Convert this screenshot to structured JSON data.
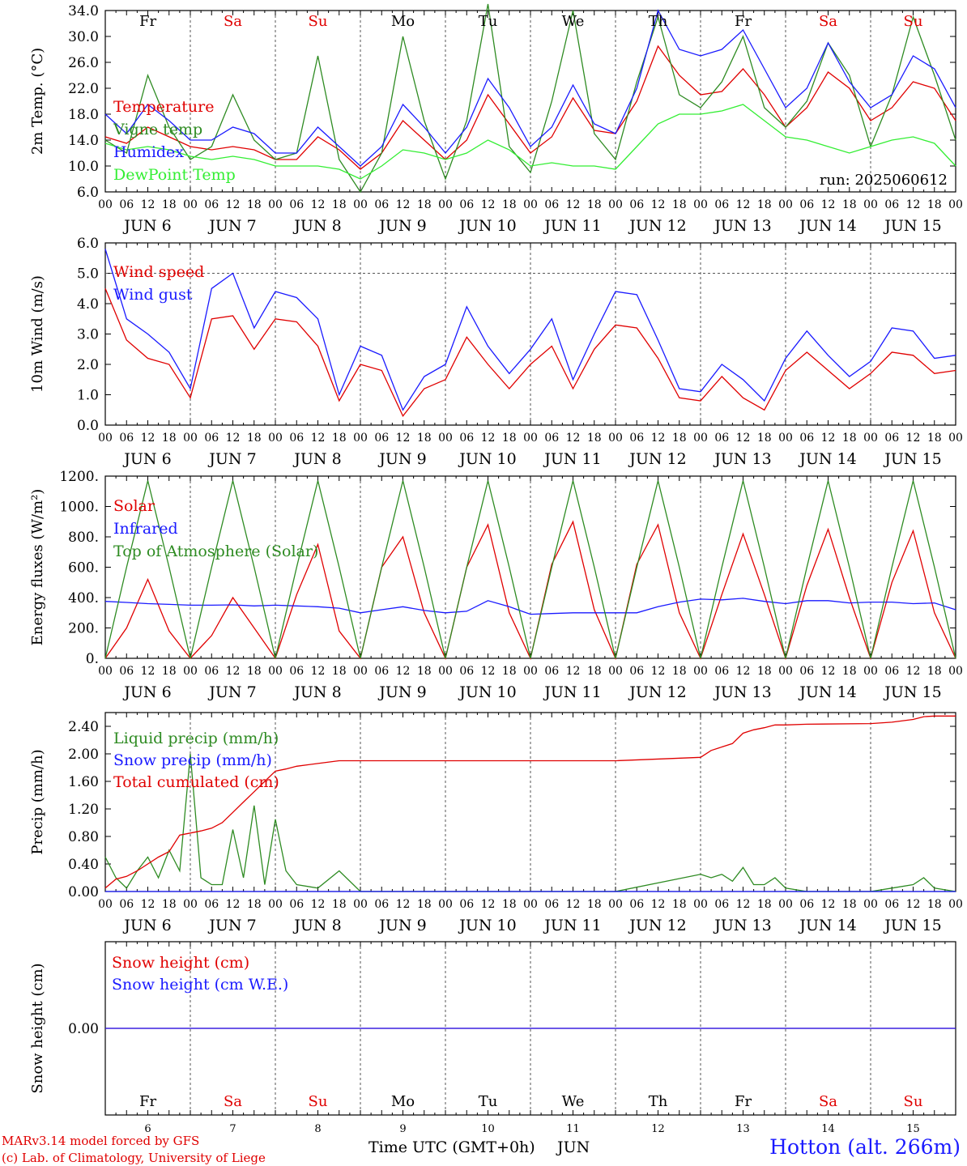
{
  "run_label": "run: 2025060612",
  "time_axis": {
    "hour_labels": [
      "00",
      "06",
      "12",
      "18"
    ],
    "end_hour_label": "00",
    "day_labels": [
      "JUN  6",
      "JUN  7",
      "JUN  8",
      "JUN  9",
      "JUN 10",
      "JUN 11",
      "JUN 12",
      "JUN 13",
      "JUN 14",
      "JUN 15"
    ],
    "weekdays": [
      "Fr",
      "Sa",
      "Su",
      "Mo",
      "Tu",
      "We",
      "Th",
      "Fr",
      "Sa",
      "Su"
    ],
    "weekday_colors": [
      "#000000",
      "#e00000",
      "#e00000",
      "#000000",
      "#000000",
      "#000000",
      "#000000",
      "#000000",
      "#e00000",
      "#e00000"
    ],
    "bottom_day_numbers": [
      "6",
      "7",
      "8",
      "9",
      "10",
      "11",
      "12",
      "13",
      "14",
      "15"
    ],
    "bottom_label": "Time UTC (GMT+0h)",
    "month_label": "JUN"
  },
  "footer": {
    "model_line": "MARv3.14 model forced by GFS",
    "credit_line": "(c) Lab. of Climatology, University of Liege",
    "station": "Hotton (alt. 266m)"
  },
  "colors": {
    "red": "#e00000",
    "green": "#2e8b22",
    "blue": "#1a1aff",
    "light_green": "#33ee33",
    "grid": "#555555"
  },
  "chart_data": [
    {
      "type": "line",
      "ylabel": "2m Temp. (°C)",
      "ylim": [
        6,
        34
      ],
      "ytick_values": [
        6,
        10,
        14,
        18,
        22,
        26,
        30,
        34
      ],
      "ytick_labels": [
        "6.0",
        "10.0",
        "14.0",
        "18.0",
        "22.0",
        "26.0",
        "30.0",
        "34.0"
      ],
      "ref_line": null,
      "x_days": [
        0,
        0.25,
        0.5,
        0.75,
        1,
        1.25,
        1.5,
        1.75,
        2,
        2.25,
        2.5,
        2.75,
        3,
        3.25,
        3.5,
        3.75,
        4,
        4.25,
        4.5,
        4.75,
        5,
        5.25,
        5.5,
        5.75,
        6,
        6.25,
        6.5,
        6.75,
        7,
        7.25,
        7.5,
        7.75,
        8,
        8.25,
        8.5,
        8.75,
        9,
        9.25,
        9.5,
        9.75,
        10
      ],
      "series": [
        {
          "name": "Temperature",
          "color": "red",
          "values": [
            14.5,
            13.5,
            16,
            14.5,
            13,
            12.5,
            13,
            12.5,
            11,
            11,
            14.5,
            12.5,
            9.5,
            12,
            17,
            14,
            11,
            14,
            21,
            16.5,
            12,
            14.5,
            20.5,
            15.5,
            15,
            20,
            28.5,
            24,
            21,
            21.5,
            25,
            21,
            16,
            19,
            24.5,
            22,
            17,
            19,
            23,
            22,
            17
          ]
        },
        {
          "name": "Vigne temp",
          "color": "green",
          "values": [
            14,
            12,
            24,
            16,
            11,
            13,
            21,
            14,
            11,
            12,
            27,
            11,
            6,
            12,
            30,
            17,
            8,
            17,
            35,
            13,
            9,
            20,
            34,
            15,
            11,
            23,
            33,
            21,
            19,
            23,
            30,
            19,
            16,
            20,
            29,
            24,
            13,
            21,
            33,
            24,
            14
          ]
        },
        {
          "name": "Humidex",
          "color": "blue",
          "values": [
            18,
            15,
            19.5,
            17,
            14,
            14,
            16,
            15,
            12,
            12,
            16,
            13,
            10,
            13,
            19.5,
            16,
            12,
            16,
            23.5,
            19,
            13,
            16,
            22.5,
            16.5,
            15,
            22,
            34,
            28,
            27,
            28,
            31,
            25,
            19,
            22,
            29,
            23,
            19,
            21,
            27,
            25,
            19
          ]
        },
        {
          "name": "DewPoint Temp",
          "color": "light_green",
          "values": [
            13.5,
            12.5,
            13,
            12.5,
            11.5,
            11,
            11.5,
            11,
            10,
            10,
            10,
            9.5,
            8,
            10,
            12.5,
            12,
            11,
            12,
            14,
            12.5,
            10,
            10.5,
            10,
            10,
            9.5,
            13,
            16.5,
            18,
            18,
            18.5,
            19.5,
            17,
            14.5,
            14,
            13,
            12,
            13,
            14,
            14.5,
            13.5,
            10
          ]
        }
      ]
    },
    {
      "type": "line",
      "ylabel": "10m Wind (m/s)",
      "ylim": [
        0,
        6
      ],
      "ytick_values": [
        0,
        1,
        2,
        3,
        4,
        5,
        6
      ],
      "ytick_labels": [
        "0.0",
        "1.0",
        "2.0",
        "3.0",
        "4.0",
        "5.0",
        "6.0"
      ],
      "ref_line": 5,
      "x_days": [
        0,
        0.25,
        0.5,
        0.75,
        1,
        1.25,
        1.5,
        1.75,
        2,
        2.25,
        2.5,
        2.75,
        3,
        3.25,
        3.5,
        3.75,
        4,
        4.25,
        4.5,
        4.75,
        5,
        5.25,
        5.5,
        5.75,
        6,
        6.25,
        6.5,
        6.75,
        7,
        7.25,
        7.5,
        7.75,
        8,
        8.25,
        8.5,
        8.75,
        9,
        9.25,
        9.5,
        9.75,
        10
      ],
      "series": [
        {
          "name": "Wind speed",
          "color": "red",
          "values": [
            4.5,
            2.8,
            2.2,
            2,
            0.9,
            3.5,
            3.6,
            2.5,
            3.5,
            3.4,
            2.6,
            0.8,
            2,
            1.8,
            0.3,
            1.2,
            1.5,
            2.9,
            2,
            1.2,
            2,
            2.6,
            1.2,
            2.5,
            3.3,
            3.2,
            2.2,
            0.9,
            0.8,
            1.6,
            0.9,
            0.5,
            1.8,
            2.4,
            1.8,
            1.2,
            1.7,
            2.4,
            2.3,
            1.7,
            1.8
          ]
        },
        {
          "name": "Wind gust",
          "color": "blue",
          "values": [
            5.8,
            3.5,
            3,
            2.4,
            1.2,
            4.5,
            5,
            3.2,
            4.4,
            4.2,
            3.5,
            1,
            2.6,
            2.3,
            0.5,
            1.6,
            2,
            3.9,
            2.6,
            1.7,
            2.5,
            3.5,
            1.5,
            3,
            4.4,
            4.3,
            2.8,
            1.2,
            1.1,
            2,
            1.5,
            0.8,
            2.2,
            3.1,
            2.3,
            1.6,
            2.1,
            3.2,
            3.1,
            2.2,
            2.3
          ]
        }
      ]
    },
    {
      "type": "line",
      "ylabel": "Energy fluxes (W/m²)",
      "ylim": [
        0,
        1200
      ],
      "ytick_values": [
        0,
        200,
        400,
        600,
        800,
        1000,
        1200
      ],
      "ytick_labels": [
        "0.",
        "200.",
        "400.",
        "600.",
        "800.",
        "1000.",
        "1200."
      ],
      "ref_line": null,
      "x_days": [
        0,
        0.25,
        0.5,
        0.75,
        1,
        1.25,
        1.5,
        1.75,
        2,
        2.25,
        2.5,
        2.75,
        3,
        3.25,
        3.5,
        3.75,
        4,
        4.25,
        4.5,
        4.75,
        5,
        5.25,
        5.5,
        5.75,
        6,
        6.25,
        6.5,
        6.75,
        7,
        7.25,
        7.5,
        7.75,
        8,
        8.25,
        8.5,
        8.75,
        9,
        9.25,
        9.5,
        9.75,
        10
      ],
      "series": [
        {
          "name": "Solar",
          "color": "red",
          "values": [
            0,
            200,
            520,
            180,
            0,
            150,
            400,
            200,
            0,
            420,
            750,
            180,
            0,
            600,
            800,
            300,
            0,
            600,
            880,
            300,
            0,
            620,
            900,
            320,
            0,
            620,
            880,
            300,
            0,
            420,
            820,
            420,
            0,
            480,
            850,
            400,
            0,
            500,
            840,
            300,
            0
          ]
        },
        {
          "name": "Infrared",
          "color": "blue",
          "values": [
            375,
            368,
            360,
            355,
            350,
            350,
            352,
            345,
            350,
            345,
            340,
            330,
            300,
            320,
            340,
            315,
            300,
            310,
            380,
            340,
            290,
            295,
            300,
            300,
            300,
            300,
            340,
            370,
            390,
            385,
            395,
            375,
            360,
            380,
            380,
            365,
            370,
            370,
            360,
            365,
            320
          ]
        },
        {
          "name": "Top of Atmosphere (Solar)",
          "color": "green",
          "values": [
            0,
            600,
            1170,
            600,
            0,
            600,
            1170,
            600,
            0,
            600,
            1170,
            600,
            0,
            600,
            1170,
            600,
            0,
            600,
            1170,
            600,
            0,
            600,
            1170,
            600,
            0,
            600,
            1170,
            600,
            0,
            600,
            1170,
            600,
            0,
            600,
            1170,
            600,
            0,
            600,
            1170,
            600,
            0
          ]
        }
      ]
    },
    {
      "type": "line",
      "ylabel": "Precip (mm/h)",
      "ylim": [
        0,
        2.6
      ],
      "ytick_values": [
        0,
        0.4,
        0.8,
        1.2,
        1.6,
        2.0,
        2.4
      ],
      "ytick_labels": [
        "0.00",
        "0.40",
        "0.80",
        "1.20",
        "1.60",
        "2.00",
        "2.40"
      ],
      "ref_line": null,
      "x_days": [
        0,
        0.125,
        0.25,
        0.375,
        0.5,
        0.625,
        0.75,
        0.875,
        1,
        1.125,
        1.25,
        1.375,
        1.5,
        1.625,
        1.75,
        1.875,
        2,
        2.125,
        2.25,
        2.5,
        2.75,
        3,
        3.5,
        4,
        5,
        6,
        7,
        7.125,
        7.25,
        7.375,
        7.5,
        7.625,
        7.75,
        7.875,
        8,
        8.25,
        9,
        9.25,
        9.5,
        9.625,
        9.75,
        10
      ],
      "series": [
        {
          "name": "Liquid precip (mm/h)",
          "color": "green",
          "values": [
            0.5,
            0.2,
            0.05,
            0.3,
            0.5,
            0.2,
            0.6,
            0.3,
            2.0,
            0.2,
            0.1,
            0.1,
            0.9,
            0.2,
            1.25,
            0.1,
            1.05,
            0.3,
            0.1,
            0.05,
            0.3,
            0,
            0,
            0,
            0,
            0,
            0.25,
            0.2,
            0.25,
            0.15,
            0.35,
            0.1,
            0.1,
            0.2,
            0.05,
            0,
            0,
            0.05,
            0.1,
            0.2,
            0.05,
            0
          ]
        },
        {
          "name": "Snow precip (mm/h)",
          "color": "blue",
          "values": [
            0,
            0,
            0,
            0,
            0,
            0,
            0,
            0,
            0,
            0,
            0,
            0,
            0,
            0,
            0,
            0,
            0,
            0,
            0,
            0,
            0,
            0,
            0,
            0,
            0,
            0,
            0,
            0,
            0,
            0,
            0,
            0,
            0,
            0,
            0,
            0,
            0,
            0,
            0,
            0,
            0,
            0
          ]
        },
        {
          "name": "Total cumulated (cm)",
          "color": "red",
          "values": [
            0.05,
            0.18,
            0.22,
            0.3,
            0.4,
            0.5,
            0.58,
            0.82,
            0.85,
            0.88,
            0.92,
            1.0,
            1.15,
            1.3,
            1.45,
            1.6,
            1.75,
            1.78,
            1.82,
            1.86,
            1.9,
            1.9,
            1.9,
            1.9,
            1.9,
            1.9,
            1.95,
            2.05,
            2.1,
            2.15,
            2.3,
            2.35,
            2.38,
            2.42,
            2.42,
            2.43,
            2.44,
            2.46,
            2.5,
            2.54,
            2.55,
            2.55
          ]
        }
      ]
    },
    {
      "type": "line",
      "ylabel": "Snow height (cm)",
      "ylim": [
        -1,
        1
      ],
      "ytick_values": [
        0
      ],
      "ytick_labels": [
        "0.00"
      ],
      "ref_line": null,
      "x_days": [
        0,
        10
      ],
      "series": [
        {
          "name": "Snow height (cm)",
          "color": "red",
          "values": [
            0,
            0
          ]
        },
        {
          "name": "Snow height (cm W.E.)",
          "color": "blue",
          "values": [
            0,
            0
          ]
        }
      ]
    }
  ]
}
